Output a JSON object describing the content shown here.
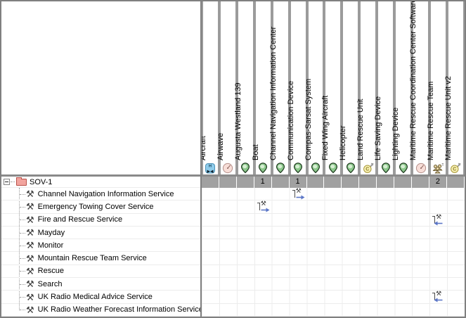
{
  "tree": {
    "root": {
      "label": "SOV-1"
    },
    "items": [
      {
        "label": "Channel Navigation Information Service"
      },
      {
        "label": "Emergency Towing Cover Service"
      },
      {
        "label": "Fire and Rescue Service"
      },
      {
        "label": "Mayday"
      },
      {
        "label": "Monitor"
      },
      {
        "label": "Mountain Rescue Team Service"
      },
      {
        "label": "Rescue"
      },
      {
        "label": "Search"
      },
      {
        "label": "UK Radio Medical Advice Service"
      },
      {
        "label": "UK Radio Weather Forecast Information Service"
      }
    ]
  },
  "matrix": {
    "columns": [
      {
        "label": "Aircraft",
        "icon": "aircraft-icon",
        "count": ""
      },
      {
        "label": "Airwave",
        "icon": "disc-icon",
        "count": ""
      },
      {
        "label": "Augusta Westland 139",
        "icon": "shield-icon",
        "count": ""
      },
      {
        "label": "Boat",
        "icon": "shield-icon",
        "count": "1"
      },
      {
        "label": "Channel Navigation Information Center",
        "icon": "shield-icon",
        "count": ""
      },
      {
        "label": "Communication Device",
        "icon": "shield-icon",
        "count": "1"
      },
      {
        "label": "Compas-Sarsat System",
        "icon": "shield-icon",
        "count": ""
      },
      {
        "label": "Fixed Wing Aircraft",
        "icon": "shield-icon",
        "count": ""
      },
      {
        "label": "Helicopter",
        "icon": "shield-icon",
        "count": ""
      },
      {
        "label": "Land Rescue Unit",
        "icon": "unit-icon",
        "count": ""
      },
      {
        "label": "Life Saving Device",
        "icon": "shield-icon",
        "count": ""
      },
      {
        "label": "Lighting Device",
        "icon": "shield-icon",
        "count": ""
      },
      {
        "label": "Maritime Rescue Coordination Center Software",
        "icon": "disc-icon",
        "count": ""
      },
      {
        "label": "Maritime Rescue Team",
        "icon": "team-icon",
        "count": "2"
      },
      {
        "label": "Maritime Rescue Unit v2",
        "icon": "unit-icon",
        "count": ""
      }
    ],
    "cells": [
      {
        "row": 0,
        "col": 5,
        "direction": "right"
      },
      {
        "row": 1,
        "col": 3,
        "direction": "right"
      },
      {
        "row": 2,
        "col": 13,
        "direction": "left"
      },
      {
        "row": 8,
        "col": 13,
        "direction": "left"
      }
    ]
  },
  "colors": {
    "arrow_blue": "#5b76c7",
    "folder_pink": "#f2a49e",
    "shield_green": "#8cc88c",
    "unit_yellow": "#f7f0b4",
    "team_tan": "#e0d0a0",
    "disc_pink": "#f8ded8",
    "band_gray": "#a1a1a1",
    "border_gray": "#808080"
  }
}
